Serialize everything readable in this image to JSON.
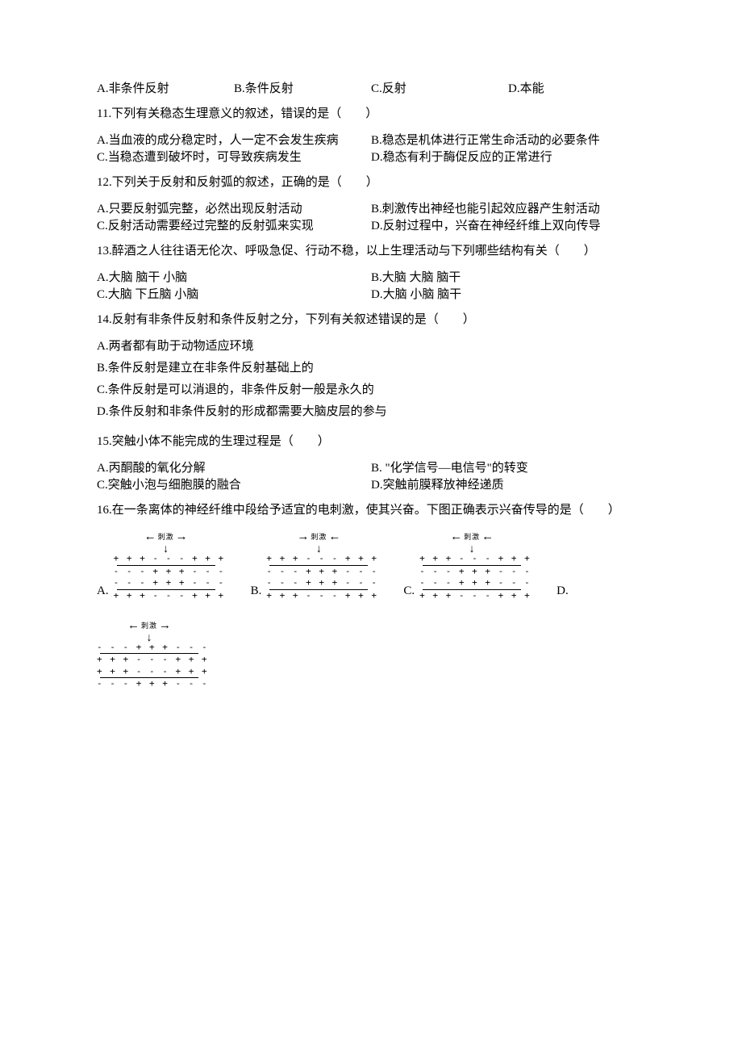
{
  "q_prev_options": {
    "A": "A.非条件反射",
    "B": "B.条件反射",
    "C": "C.反射",
    "D": "D.本能"
  },
  "q11": {
    "stem": "11.下列有关稳态生理意义的叙述，错误的是（　　）",
    "A": "A.当血液的成分稳定时，人一定不会发生疾病",
    "B": "B.稳态是机体进行正常生命活动的必要条件",
    "C": "C.当稳态遭到破坏时，可导致疾病发生",
    "D": "D.稳态有利于酶促反应的正常进行"
  },
  "q12": {
    "stem": "12.下列关于反射和反射弧的叙述，正确的是（　　）",
    "A": "A.只要反射弧完整，必然出现反射活动",
    "B": "B.刺激传出神经也能引起效应器产生射活动",
    "C": "C.反射活动需要经过完整的反射弧来实现",
    "D": "D.反射过程中，兴奋在神经纤维上双向传导"
  },
  "q13": {
    "stem": "13.醉酒之人往往语无伦次、呼吸急促、行动不稳，以上生理活动与下列哪些结构有关（　　）",
    "A": "A.大脑 脑干 小脑",
    "B": "B.大脑 大脑 脑干",
    "C": "C.大脑 下丘脑 小脑",
    "D": "D.大脑 小脑 脑干"
  },
  "q14": {
    "stem": "14.反射有非条件反射和条件反射之分，下列有关叙述错误的是（　　）",
    "A": "A.两者都有助于动物适应环境",
    "B": "B.条件反射是建立在非条件反射基础上的",
    "C": "C.条件反射是可以消退的，非条件反射一般是永久的",
    "D": "D.条件反射和非条件反射的形成都需要大脑皮层的参与"
  },
  "q15": {
    "stem": "15.突触小体不能完成的生理过程是（　　）",
    "A": "A.丙酮酸的氧化分解",
    "B": "B. \"化学信号—电信号\"的转变",
    "C": "C.突触小泡与细胞膜的融合",
    "D": "D.突触前膜释放神经递质"
  },
  "q16": {
    "stem": "16.在一条离体的神经纤维中段给予适宜的电刺激，使其兴奋。下图正确表示兴奋传导的是（　　）",
    "labels": {
      "A": "A.",
      "B": "B.",
      "C": "C.",
      "D": "D."
    },
    "stim_word": "刺激",
    "diagrams": {
      "A": {
        "top_out": "+ + + - - - + + +",
        "top_in": "- - - + + + - - -",
        "bot_in": "- - - + + + - - -",
        "bot_out": "+ + + - - - + + +",
        "arrow_left": "←",
        "arrow_right": "→"
      },
      "B": {
        "top_out": "+ + + - - - + + +",
        "top_in": "- - - + + + - - -",
        "bot_in": "- - - + + + - - -",
        "bot_out": "+ + + - - - + + +",
        "arrow_left": "→",
        "arrow_right": "←"
      },
      "C": {
        "top_out": "+ + + - - - + + +",
        "top_in": "- - - + + + - - -",
        "bot_in": "- - - + + + - - -",
        "bot_out": "+ + + - - - + + +",
        "arrow_left": "←",
        "arrow_right": "←"
      },
      "D": {
        "top_out": "- - - + + + - - -",
        "top_in": "+ + + - - - + + +",
        "bot_in": "+ + + - - - + + +",
        "bot_out": "- - - + + + - - -",
        "arrow_left": "←",
        "arrow_right": "→"
      }
    }
  }
}
